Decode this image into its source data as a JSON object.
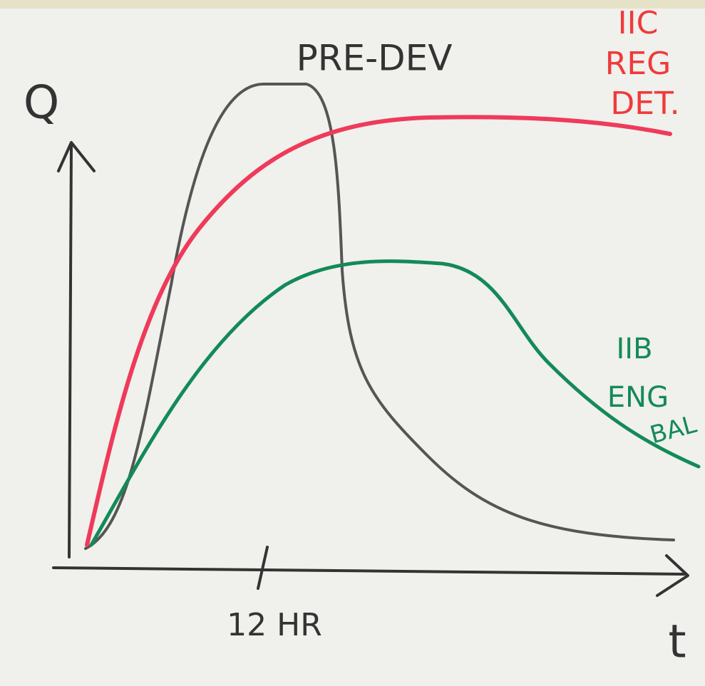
{
  "axes": {
    "y_label": "Q",
    "x_label": "t",
    "x_tick_label": "12 HR"
  },
  "curves": [
    {
      "label_lines": [
        "PRE-DEV"
      ]
    },
    {
      "label_lines": [
        "IIC",
        "REG",
        "DET."
      ]
    },
    {
      "label_lines": [
        "IIB",
        "ENG",
        "BAL"
      ]
    }
  ]
}
